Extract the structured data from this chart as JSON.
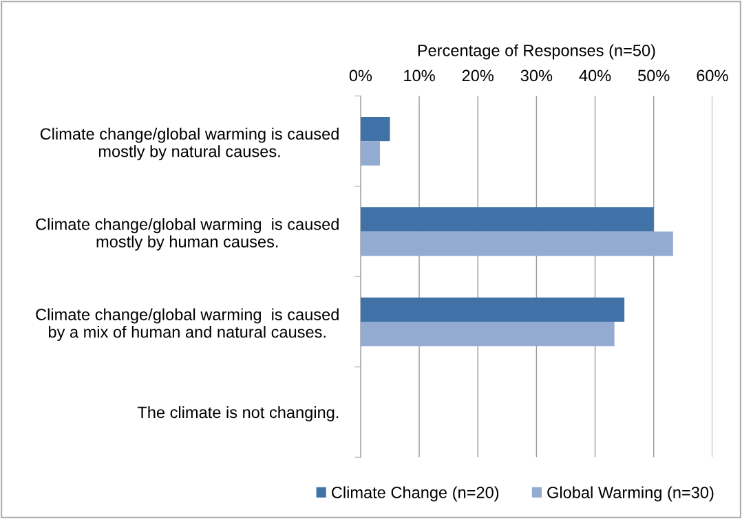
{
  "chart_data": {
    "type": "bar",
    "orientation": "horizontal",
    "xlabel": "Percentage of Responses (n=50)",
    "categories": [
      "Climate change/global warming is caused\nmostly by natural causes.",
      "Climate change/global warming  is caused\nmostly by human causes.",
      "Climate change/global warming  is caused\nby a mix of human and natural causes.",
      "The climate is not changing."
    ],
    "series": [
      {
        "name": "Climate Change (n=20)",
        "color": "#4072a8",
        "values": [
          5,
          50,
          45,
          0
        ]
      },
      {
        "name": "Global Warming (n=30)",
        "color": "#93aad1",
        "values": [
          3.3,
          53.3,
          43.3,
          0
        ]
      }
    ],
    "xlim": [
      0,
      60
    ],
    "xticks": [
      {
        "value": 0,
        "label": "0%"
      },
      {
        "value": 10,
        "label": "10%"
      },
      {
        "value": 20,
        "label": "20%"
      },
      {
        "value": 30,
        "label": "30%"
      },
      {
        "value": 40,
        "label": "40%"
      },
      {
        "value": 50,
        "label": "50%"
      },
      {
        "value": 60,
        "label": "60%"
      }
    ],
    "grid": "x",
    "legend": "bottom"
  }
}
